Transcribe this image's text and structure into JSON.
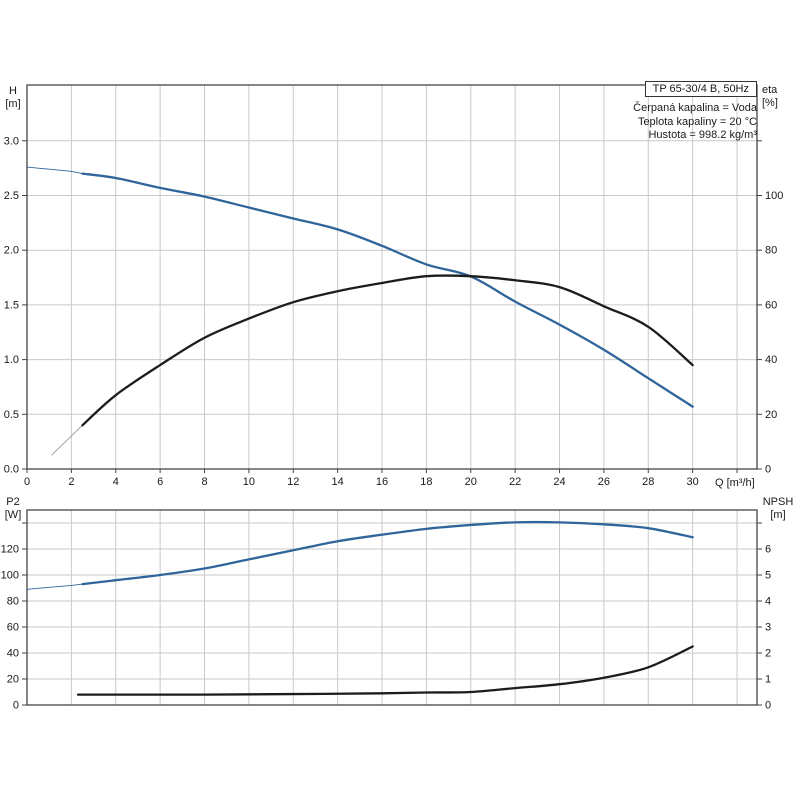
{
  "chart_data": [
    {
      "type": "line",
      "title": "TP 65-30/4 B, 50Hz",
      "annotations": [
        "Čerpaná kapalina = Voda",
        "Teplota kapaliny = 20 °C",
        "Hustota = 998.2 kg/m³"
      ],
      "xlabel": "Q [m³/h]",
      "grid": true,
      "legend": "none",
      "axes": {
        "x": {
          "max": 32.9,
          "tick_labels": [
            "0",
            "2",
            "4",
            "6",
            "8",
            "10",
            "12",
            "14",
            "16",
            "18",
            "20",
            "22",
            "24",
            "26",
            "28",
            "30"
          ],
          "extra_ticks": [
            32
          ]
        },
        "left": {
          "label": "H",
          "unit": "[m]",
          "max": 3.51,
          "tick_labels": [
            "0.0",
            "0.5",
            "1.0",
            "1.5",
            "2.0",
            "2.5",
            "3.0"
          ],
          "extra_ticks": []
        },
        "right": {
          "label": "eta",
          "unit": "[%]",
          "max": 140.4,
          "tick_labels": [
            "0",
            "20",
            "40",
            "60",
            "80",
            "100"
          ],
          "extra_ticks": [
            120
          ]
        }
      },
      "series": [
        {
          "name": "head-curve",
          "color": "#30659b",
          "axis": "left",
          "lead_in": [
            [
              0,
              2.76
            ],
            [
              1,
              2.74
            ],
            [
              2,
              2.72
            ],
            [
              2.5,
              2.7
            ]
          ],
          "points": [
            [
              2.5,
              2.7
            ],
            [
              4,
              2.66
            ],
            [
              6,
              2.57
            ],
            [
              8,
              2.49
            ],
            [
              10,
              2.39
            ],
            [
              12,
              2.29
            ],
            [
              14,
              2.19
            ],
            [
              16,
              2.04
            ],
            [
              18,
              1.87
            ],
            [
              20,
              1.76
            ],
            [
              22,
              1.53
            ],
            [
              24,
              1.32
            ],
            [
              26,
              1.09
            ],
            [
              28,
              0.83
            ],
            [
              30,
              0.57
            ]
          ]
        },
        {
          "name": "efficiency-curve",
          "color": "#1c1c1c",
          "axis": "right",
          "lead_in": [
            [
              1.1,
              5
            ],
            [
              1.8,
              10.5
            ],
            [
              2.5,
              16
            ]
          ],
          "points": [
            [
              2.5,
              16
            ],
            [
              4,
              27
            ],
            [
              6,
              38
            ],
            [
              8,
              48
            ],
            [
              10,
              55
            ],
            [
              12,
              61
            ],
            [
              14,
              65
            ],
            [
              16,
              68
            ],
            [
              18,
              70.5
            ],
            [
              20,
              70.5
            ],
            [
              22,
              69
            ],
            [
              24,
              66.5
            ],
            [
              26,
              59.5
            ],
            [
              28,
              52
            ],
            [
              30,
              38
            ]
          ]
        }
      ]
    },
    {
      "type": "line",
      "title": "",
      "xlabel": "",
      "grid": true,
      "legend": "none",
      "axes": {
        "x": {
          "max": 32.9,
          "tick_labels": [],
          "extra_ticks": [
            2,
            4,
            6,
            8,
            10,
            12,
            14,
            16,
            18,
            20,
            22,
            24,
            26,
            28,
            30,
            32
          ]
        },
        "left": {
          "label": "P2",
          "unit": "[W]",
          "max": 150,
          "tick_labels": [
            "0",
            "20",
            "40",
            "60",
            "80",
            "100",
            "120"
          ],
          "extra_ticks": [
            140
          ]
        },
        "right": {
          "label": "NPSH",
          "unit": "[m]",
          "max": 7.5,
          "tick_labels": [
            "0",
            "1",
            "2",
            "3",
            "4",
            "5",
            "6"
          ],
          "extra_ticks": [
            7
          ]
        }
      },
      "series": [
        {
          "name": "power-curve",
          "color": "#30659b",
          "axis": "left",
          "lead_in": [
            [
              0,
              89
            ],
            [
              1,
              90.5
            ],
            [
              2,
              92
            ],
            [
              2.5,
              93
            ]
          ],
          "points": [
            [
              2.5,
              93
            ],
            [
              4,
              96
            ],
            [
              6,
              100
            ],
            [
              8,
              105
            ],
            [
              10,
              112
            ],
            [
              12,
              119
            ],
            [
              14,
              126
            ],
            [
              16,
              131
            ],
            [
              18,
              135.5
            ],
            [
              20,
              138.5
            ],
            [
              22,
              140.5
            ],
            [
              24,
              140.5
            ],
            [
              26,
              139
            ],
            [
              28,
              136
            ],
            [
              30,
              129
            ]
          ]
        },
        {
          "name": "npsh-curve",
          "color": "#1c1c1c",
          "axis": "right",
          "lead_in": [],
          "points": [
            [
              2.3,
              0.4
            ],
            [
              4,
              0.4
            ],
            [
              8,
              0.4
            ],
            [
              12,
              0.42
            ],
            [
              16,
              0.45
            ],
            [
              18,
              0.48
            ],
            [
              20,
              0.5
            ],
            [
              22,
              0.65
            ],
            [
              24,
              0.8
            ],
            [
              26,
              1.05
            ],
            [
              28,
              1.45
            ],
            [
              30,
              2.25
            ]
          ]
        }
      ]
    }
  ],
  "style": {
    "accent_blue": "#30659b",
    "curve_black": "#1c1c1c",
    "grid_color": "#c9c9c9",
    "frame_color": "#444444",
    "lead_gray": "#9a9a9a"
  }
}
